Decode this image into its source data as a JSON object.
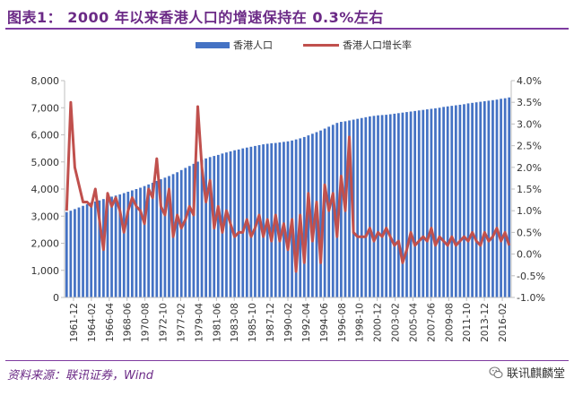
{
  "title": "图表1：  2000 年以来香港人口的增速保持在 0.3%左右",
  "source": "资料来源：联讯证券，Wind",
  "logo": {
    "text": "联讯麒麟堂",
    "icon": "wechat-icon"
  },
  "colors": {
    "title": "#6B2A86",
    "bar": "#4472C4",
    "line": "#C0504D",
    "axis": "#BFBFBF"
  },
  "chart_data": {
    "type": "bar+line",
    "legend": [
      "香港人口",
      "香港人口增长率"
    ],
    "legend_position": "top-center",
    "y_left": {
      "min": 0,
      "max": 8000,
      "ticks": [
        "0",
        "1,000",
        "2,000",
        "3,000",
        "4,000",
        "5,000",
        "6,000",
        "7,000",
        "8,000"
      ]
    },
    "y_right": {
      "min": -1.0,
      "max": 4.0,
      "ticks": [
        "-1.0%",
        "-0.5%",
        "0.0%",
        "0.5%",
        "1.0%",
        "1.5%",
        "2.0%",
        "2.5%",
        "3.0%",
        "3.5%",
        "4.0%"
      ]
    },
    "x_ticks": [
      "1961-12",
      "1964-02",
      "1966-04",
      "1968-06",
      "1970-08",
      "1972-10",
      "1977-02",
      "1979-04",
      "1981-06",
      "1983-08",
      "1985-10",
      "1987-12",
      "1990-02",
      "1992-04",
      "1994-06",
      "1996-08",
      "1998-10",
      "2000-12",
      "2003-02",
      "2005-04",
      "2007-06",
      "2009-08",
      "2011-10",
      "2013-12",
      "2016-02"
    ],
    "series": [
      {
        "name": "香港人口",
        "axis": "left",
        "type": "bar",
        "values": [
          3150,
          3200,
          3260,
          3320,
          3380,
          3440,
          3500,
          3540,
          3580,
          3630,
          3680,
          3720,
          3760,
          3800,
          3850,
          3900,
          3950,
          4000,
          4050,
          4110,
          4170,
          4230,
          4300,
          4360,
          4420,
          4480,
          4550,
          4620,
          4700,
          4780,
          4850,
          4930,
          5010,
          5080,
          5130,
          5180,
          5220,
          5260,
          5310,
          5350,
          5390,
          5430,
          5460,
          5500,
          5530,
          5560,
          5590,
          5620,
          5650,
          5670,
          5690,
          5700,
          5720,
          5740,
          5760,
          5790,
          5830,
          5870,
          5920,
          5980,
          6040,
          6100,
          6160,
          6230,
          6300,
          6370,
          6440,
          6480,
          6500,
          6530,
          6560,
          6590,
          6620,
          6650,
          6680,
          6700,
          6720,
          6730,
          6740,
          6760,
          6780,
          6800,
          6820,
          6840,
          6860,
          6880,
          6900,
          6920,
          6940,
          6960,
          6980,
          7000,
          7030,
          7050,
          7070,
          7090,
          7110,
          7130,
          7160,
          7180,
          7200,
          7220,
          7240,
          7260,
          7280,
          7300,
          7330,
          7350,
          7380
        ]
      },
      {
        "name": "香港人口增长率",
        "axis": "right",
        "type": "line",
        "values": [
          1.0,
          3.5,
          2.0,
          1.6,
          1.2,
          1.2,
          1.1,
          1.5,
          0.8,
          0.1,
          1.4,
          1.1,
          1.3,
          1.0,
          0.5,
          1.0,
          1.3,
          1.1,
          1.0,
          0.7,
          1.5,
          1.3,
          2.2,
          1.1,
          0.9,
          1.5,
          0.4,
          0.9,
          0.6,
          0.8,
          1.1,
          0.9,
          3.4,
          2.0,
          1.2,
          1.7,
          0.6,
          1.1,
          0.5,
          1.0,
          0.7,
          0.4,
          0.5,
          0.5,
          0.8,
          0.4,
          0.6,
          0.9,
          0.4,
          0.8,
          0.3,
          0.9,
          0.3,
          0.7,
          0.1,
          0.8,
          -0.4,
          0.9,
          -0.2,
          1.4,
          0.3,
          1.2,
          -0.2,
          1.6,
          1.0,
          1.4,
          0.4,
          1.8,
          1.0,
          2.7,
          0.5,
          0.4,
          0.4,
          0.4,
          0.6,
          0.3,
          0.5,
          0.4,
          0.6,
          0.4,
          0.2,
          0.3,
          -0.2,
          0.1,
          0.5,
          0.2,
          0.3,
          0.4,
          0.3,
          0.6,
          0.2,
          0.4,
          0.3,
          0.2,
          0.4,
          0.2,
          0.3,
          0.4,
          0.3,
          0.5,
          0.3,
          0.2,
          0.5,
          0.3,
          0.4,
          0.6,
          0.3,
          0.5,
          0.2
        ]
      }
    ]
  }
}
